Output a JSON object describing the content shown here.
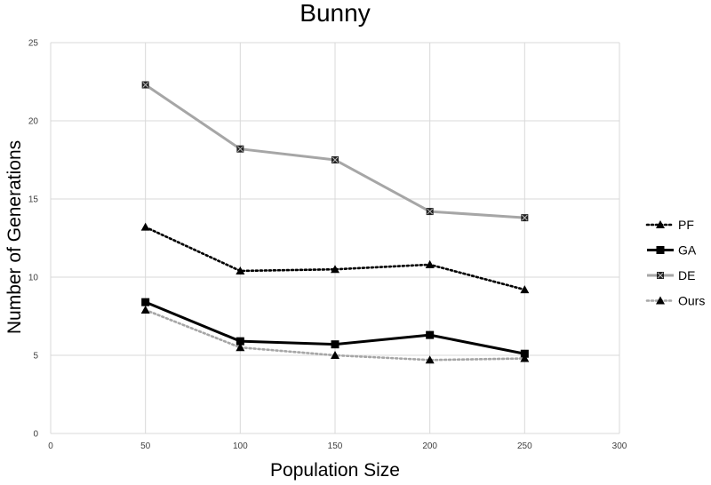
{
  "chart_data": {
    "type": "line",
    "title": "Bunny",
    "xlabel": "Population Size",
    "ylabel": "Number of Generations",
    "xlim": [
      0,
      300
    ],
    "ylim": [
      0,
      25
    ],
    "xticks": [
      "0",
      "50",
      "100",
      "150",
      "200",
      "250",
      "300"
    ],
    "yticks": [
      "0",
      "5",
      "10",
      "15",
      "20",
      "25"
    ],
    "grid": true,
    "legend_position": "right",
    "x": [
      50,
      100,
      150,
      200,
      250
    ],
    "series": [
      {
        "name": "PF",
        "values": [
          13.2,
          10.4,
          10.5,
          10.8,
          9.2
        ],
        "color": "#000000",
        "line": "dotted",
        "marker": "triangle"
      },
      {
        "name": "GA",
        "values": [
          8.4,
          5.9,
          5.7,
          6.3,
          5.1
        ],
        "color": "#000000",
        "line": "solid",
        "marker": "square"
      },
      {
        "name": "DE",
        "values": [
          22.3,
          18.2,
          17.5,
          14.2,
          13.8
        ],
        "color": "#a6a6a6",
        "line": "solid",
        "marker": "square-x"
      },
      {
        "name": "Ours",
        "values": [
          7.9,
          5.5,
          5.0,
          4.7,
          4.8
        ],
        "color": "#a6a6a6",
        "line": "dotted",
        "marker": "triangle"
      }
    ]
  }
}
